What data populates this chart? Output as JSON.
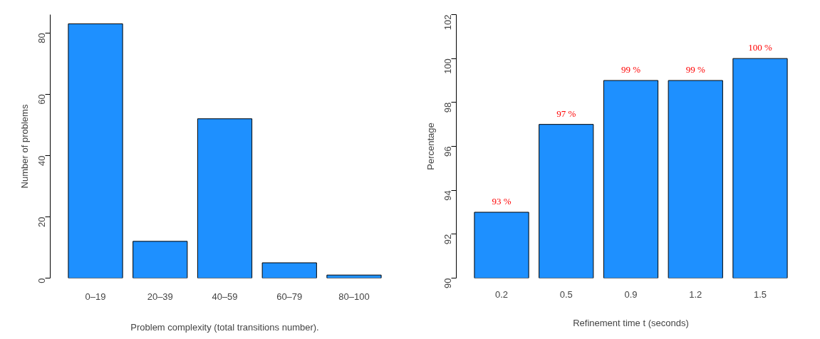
{
  "chart_data": [
    {
      "type": "bar",
      "xlabel": "Problem complexity (total transitions number).",
      "ylabel": "Number of problems",
      "categories": [
        "0–19",
        "20–39",
        "40–59",
        "60–79",
        "80–100"
      ],
      "values": [
        83,
        12,
        52,
        5,
        1
      ],
      "color": "#1e90ff",
      "ylim": [
        0,
        86
      ],
      "yticks": [
        0,
        20,
        40,
        60,
        80
      ],
      "grid": false
    },
    {
      "type": "bar",
      "xlabel": "Refinement time t (seconds)",
      "ylabel": "Percentage",
      "categories": [
        "0.2",
        "0.5",
        "0.9",
        "1.2",
        "1.5"
      ],
      "values": [
        93,
        97,
        99,
        99,
        100
      ],
      "value_labels": [
        "93 %",
        "97 %",
        "99 %",
        "99 %",
        "100 %"
      ],
      "color": "#1e90ff",
      "ylim": [
        90,
        102
      ],
      "yticks": [
        90,
        92,
        94,
        96,
        98,
        100,
        102
      ],
      "grid": false
    }
  ]
}
